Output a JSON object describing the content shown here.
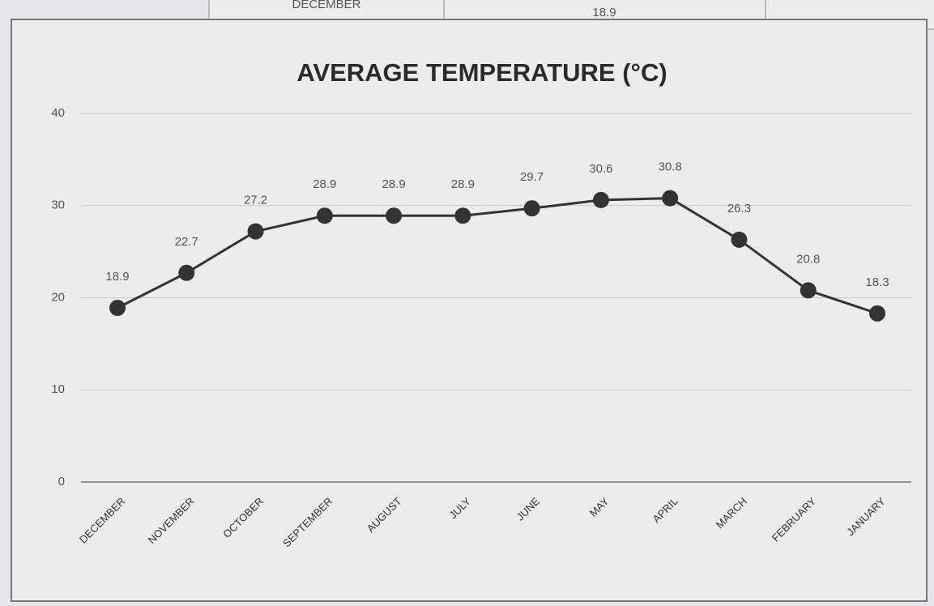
{
  "table": {
    "rows": [
      [
        "DECEMBER",
        "18.9"
      ]
    ]
  },
  "chart_data": {
    "type": "line",
    "title": "AVERAGE TEMPERATURE (°C)",
    "categories": [
      "DECEMBER",
      "NOVEMBER",
      "OCTOBER",
      "SEPTEMBER",
      "AUGUST",
      "JULY",
      "JUNE",
      "MAY",
      "APRIL",
      "MARCH",
      "FEBRUARY",
      "JANUARY"
    ],
    "values": [
      18.9,
      22.7,
      27.2,
      28.9,
      28.9,
      28.9,
      29.7,
      30.6,
      30.8,
      26.3,
      20.8,
      18.3
    ],
    "color": "#333333",
    "ylim": [
      0,
      40
    ],
    "yticks": [
      0,
      10,
      20,
      30,
      40
    ],
    "grid": true
  }
}
